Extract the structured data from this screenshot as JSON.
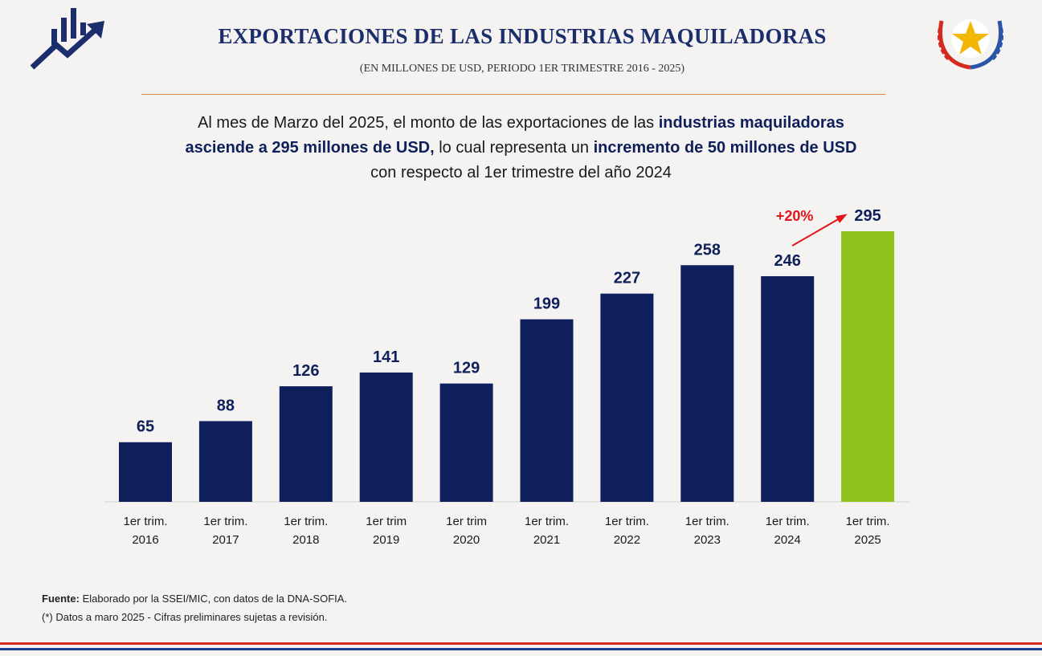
{
  "header": {
    "title": "EXPORTACIONES DE LAS INDUSTRIAS MAQUILADORAS",
    "subtitle": "(EN MILLONES DE USD, PERIODO 1ER TRIMESTRE 2016 - 2025)"
  },
  "summary": {
    "p1": "Al mes de Marzo del 2025, el monto de las exportaciones de las ",
    "b1": "industrias maquiladoras",
    "b2": "asciende a 295 millones de USD,",
    "p2": " lo cual representa un ",
    "b3": "incremento de 50 millones de USD",
    "p3": "con respecto al 1er trimestre del año 2024"
  },
  "chart_data": {
    "type": "bar",
    "categories": [
      [
        "1er trim.",
        "2016"
      ],
      [
        "1er trim.",
        "2017"
      ],
      [
        "1er trim.",
        "2018"
      ],
      [
        "1er trim",
        "2019"
      ],
      [
        "1er trim",
        "2020"
      ],
      [
        "1er trim.",
        "2021"
      ],
      [
        "1er trim.",
        "2022"
      ],
      [
        "1er trim.",
        "2023"
      ],
      [
        "1er trim.",
        "2024"
      ],
      [
        "1er trim.",
        "2025"
      ]
    ],
    "values": [
      65,
      88,
      126,
      141,
      129,
      199,
      227,
      258,
      246,
      295
    ],
    "colors": [
      "#0f1f5c",
      "#0f1f5c",
      "#0f1f5c",
      "#0f1f5c",
      "#0f1f5c",
      "#0f1f5c",
      "#0f1f5c",
      "#0f1f5c",
      "#0f1f5c",
      "#8dc21f"
    ],
    "ylim": [
      0,
      300
    ],
    "grid": false,
    "annotation": {
      "text": "+20%",
      "color": "#e3151a",
      "from_index": 8,
      "to_index": 9
    }
  },
  "footer": {
    "source_label": "Fuente:",
    "source_text": " Elaborado por la SSEI/MIC, con datos de la DNA-SOFIA.",
    "note": "(*) Datos a maro 2025 - Cifras preliminares sujetas a revisión."
  },
  "colors": {
    "navy": "#0f1f5c",
    "green": "#8dc21f",
    "accent_red": "#e3151a",
    "rule_orange": "#e8833a"
  }
}
